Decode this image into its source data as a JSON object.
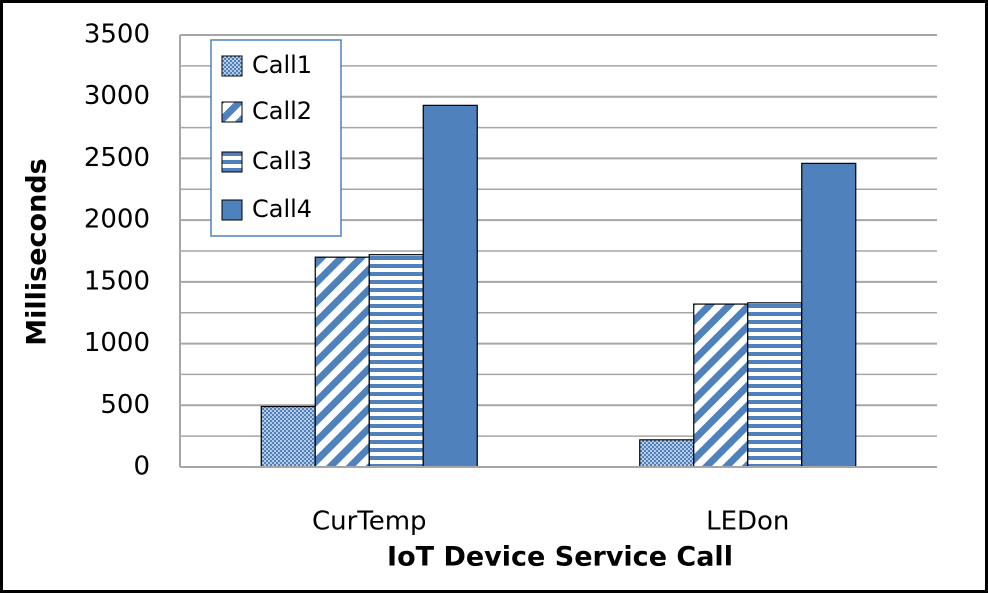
{
  "chart_data": {
    "type": "bar",
    "x_label": "IoT Device Service Call",
    "y_label": "Milliseconds",
    "categories": [
      "CurTemp",
      "LEDon"
    ],
    "series": [
      {
        "name": "Call1",
        "color": "#4f81bd",
        "pattern": "dots",
        "values": [
          490,
          220
        ]
      },
      {
        "name": "Call2",
        "color": "#4f81bd",
        "pattern": "diagonal",
        "values": [
          1700,
          1320
        ]
      },
      {
        "name": "Call3",
        "color": "#4f81bd",
        "pattern": "horizontal",
        "values": [
          1720,
          1330
        ]
      },
      {
        "name": "Call4",
        "color": "#4f81bd",
        "pattern": "solid",
        "values": [
          2930,
          2460
        ]
      }
    ],
    "ylim": [
      0,
      3500
    ],
    "yticks": [
      0,
      500,
      1000,
      1500,
      2000,
      2500,
      3000,
      3500
    ],
    "minor_yticks": [
      250,
      750,
      1250,
      1750,
      2250,
      2750,
      3250
    ],
    "grid": true,
    "legend": "upper-left"
  }
}
